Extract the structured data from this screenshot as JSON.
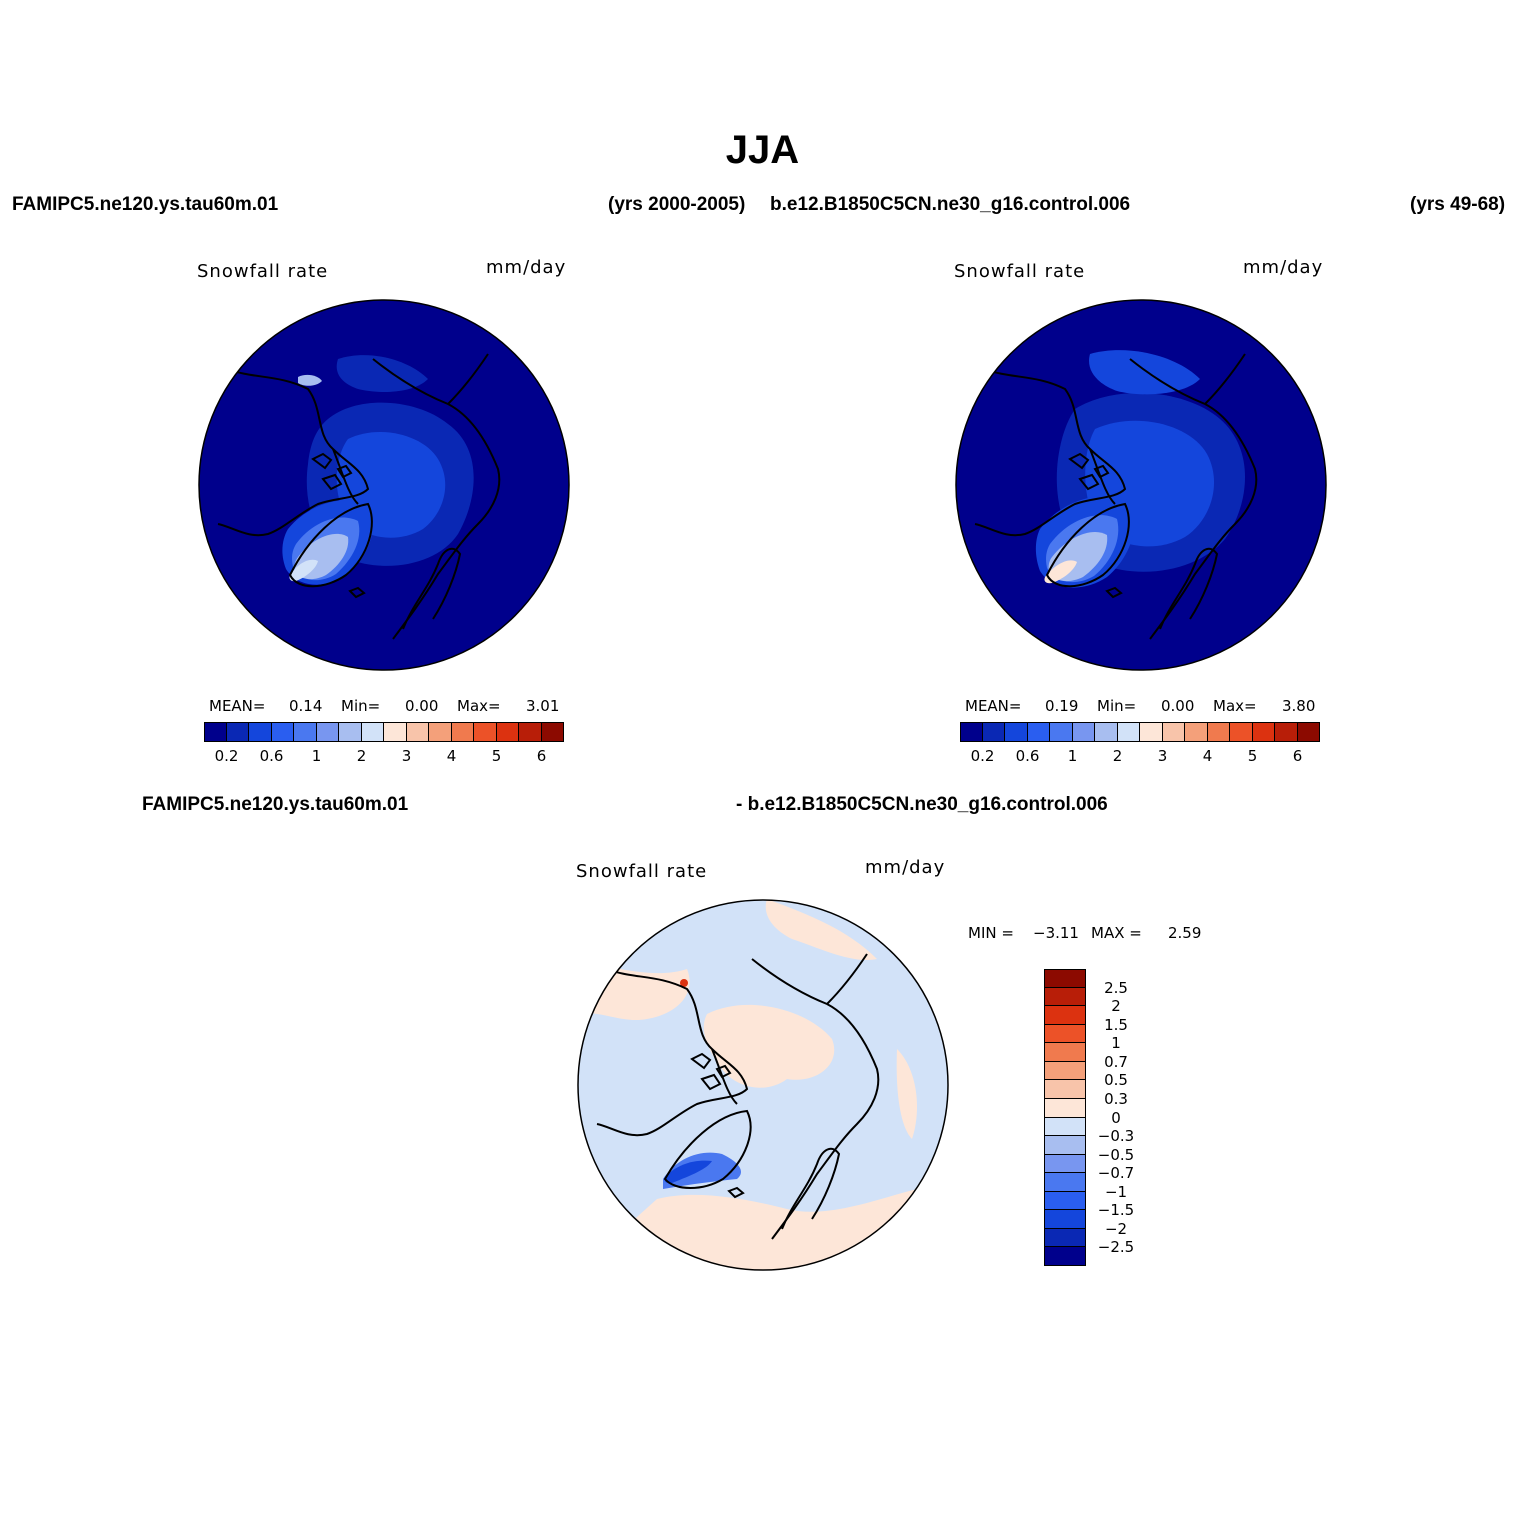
{
  "title": "JJA",
  "header": {
    "case1": "FAMIPC5.ne120.ys.tau60m.01",
    "years1": "(yrs 2000-2005)",
    "case2": "b.e12.B1850C5CN.ne30_g16.control.006",
    "years2": "(yrs 49-68)",
    "diff_left": "FAMIPC5.ne120.ys.tau60m.01",
    "diff_right": "- b.e12.B1850C5CN.ne30_g16.control.006"
  },
  "panels": [
    {
      "variable": "Snowfall rate",
      "units": "mm/day",
      "mean_label": "MEAN=",
      "mean": "0.14",
      "min_label": "Min=",
      "min": "0.00",
      "max_label": "Max=",
      "max": "3.01"
    },
    {
      "variable": "Snowfall rate",
      "units": "mm/day",
      "mean_label": "MEAN=",
      "mean": "0.19",
      "min_label": "Min=",
      "min": "0.00",
      "max_label": "Max=",
      "max": "3.80"
    }
  ],
  "diff_panel": {
    "variable": "Snowfall rate",
    "units": "mm/day",
    "min_label": "MIN =",
    "min": "−3.11",
    "max_label": "MAX =",
    "max": "2.59"
  },
  "colorbar_h": {
    "tick_labels": [
      "0.2",
      "0.6",
      "1",
      "2",
      "3",
      "4",
      "5",
      "6"
    ],
    "colors": [
      "#00008c",
      "#0a28b4",
      "#1446dc",
      "#2a5ef0",
      "#4a78f0",
      "#7896f0",
      "#a8bef0",
      "#d2e2f8",
      "#fde6d8",
      "#f8c4aa",
      "#f4a07a",
      "#f07a4e",
      "#ec5228",
      "#dc3210",
      "#b81e08",
      "#8c0a00"
    ]
  },
  "colorbar_v": {
    "tick_labels": [
      "2.5",
      "2",
      "1.5",
      "1",
      "0.7",
      "0.5",
      "0.3",
      "0",
      "−0.3",
      "−0.5",
      "−0.7",
      "−1",
      "−1.5",
      "−2",
      "−2.5"
    ],
    "colors": [
      "#8c0a00",
      "#b81e08",
      "#dc3210",
      "#ec5228",
      "#f07a4e",
      "#f4a07a",
      "#f8c4aa",
      "#fde6d8",
      "#d2e2f8",
      "#a8bef0",
      "#7896f0",
      "#4a78f0",
      "#2a5ef0",
      "#1446dc",
      "#0a28b4",
      "#00008c"
    ]
  },
  "map_colors": {
    "ocean_low": "#00008c",
    "level_1": "#0a28b4",
    "level_2": "#1446dc",
    "level_3": "#4a78f0",
    "level_4": "#a8bef0",
    "level_5": "#d2e2f8",
    "diff_bg": "#d2e2f8",
    "diff_pos": "#fde6d8",
    "diff_neg_strong": "#1446dc",
    "diff_neg_mid": "#4a78f0",
    "diff_hot": "#dc3210"
  }
}
